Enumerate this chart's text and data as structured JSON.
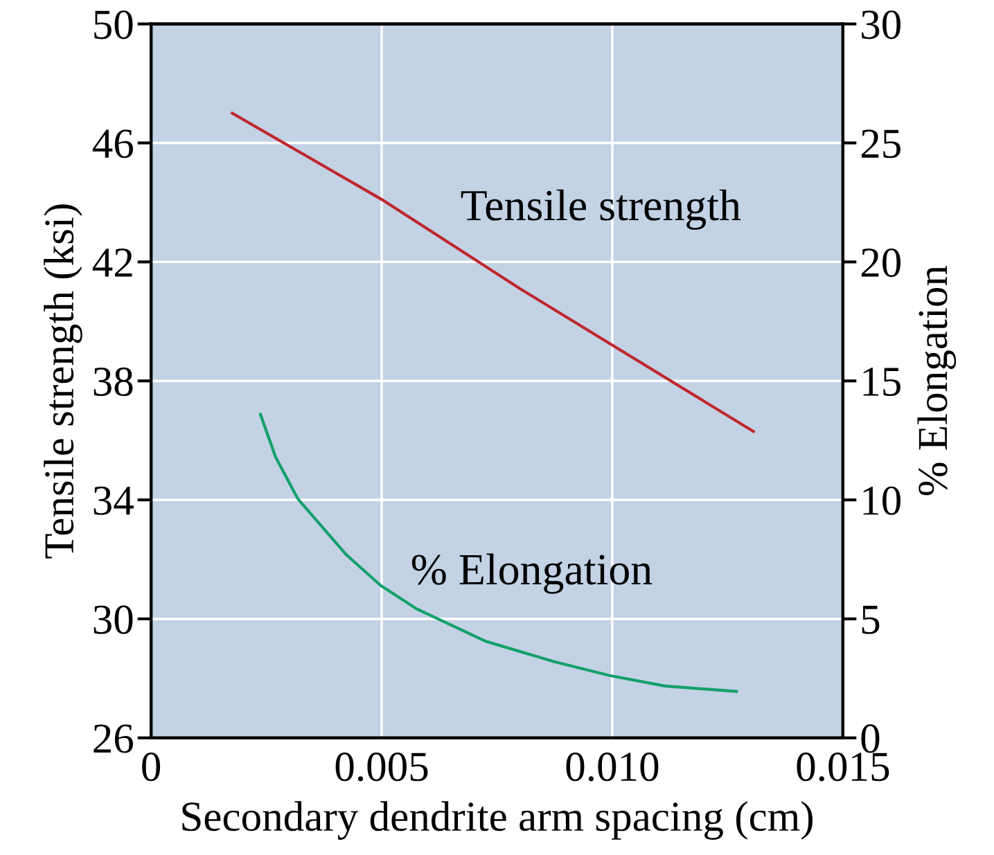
{
  "chart_data": {
    "type": "line",
    "xlabel": "Secondary dendrite arm spacing (cm)",
    "ylabel": "Tensile strength (ksi)",
    "y2label": "% Elongation",
    "xlim": [
      0,
      0.015
    ],
    "xticks": [
      {
        "value": 0,
        "label": "0"
      },
      0.005,
      {
        "value": 0.01,
        "label": "0.010"
      },
      0.015
    ],
    "ylim": [
      26,
      50
    ],
    "yticks": [
      26,
      30,
      34,
      38,
      42,
      46,
      50
    ],
    "y2lim": [
      0,
      30
    ],
    "y2ticks": [
      0,
      5,
      10,
      15,
      20,
      25,
      30
    ],
    "grid": true,
    "legend": false,
    "series": [
      {
        "name": "Tensile strength",
        "color": "#c0272d",
        "x": [
          0.00176,
          0.005,
          0.008,
          0.01306
        ],
        "values": [
          47.0,
          44.1,
          41.1,
          36.3
        ]
      },
      {
        "name": "% Elongation",
        "color": "#14a06a",
        "axis": "y2",
        "x": [
          0.00237,
          0.0027,
          0.00318,
          0.00423,
          0.00498,
          0.00574,
          0.00724,
          0.00874,
          0.00994,
          0.01114,
          0.01269
        ],
        "values": [
          13.6,
          11.8,
          10.05,
          7.7,
          6.4,
          5.44,
          4.07,
          3.2,
          2.62,
          2.18,
          1.95
        ]
      }
    ]
  }
}
